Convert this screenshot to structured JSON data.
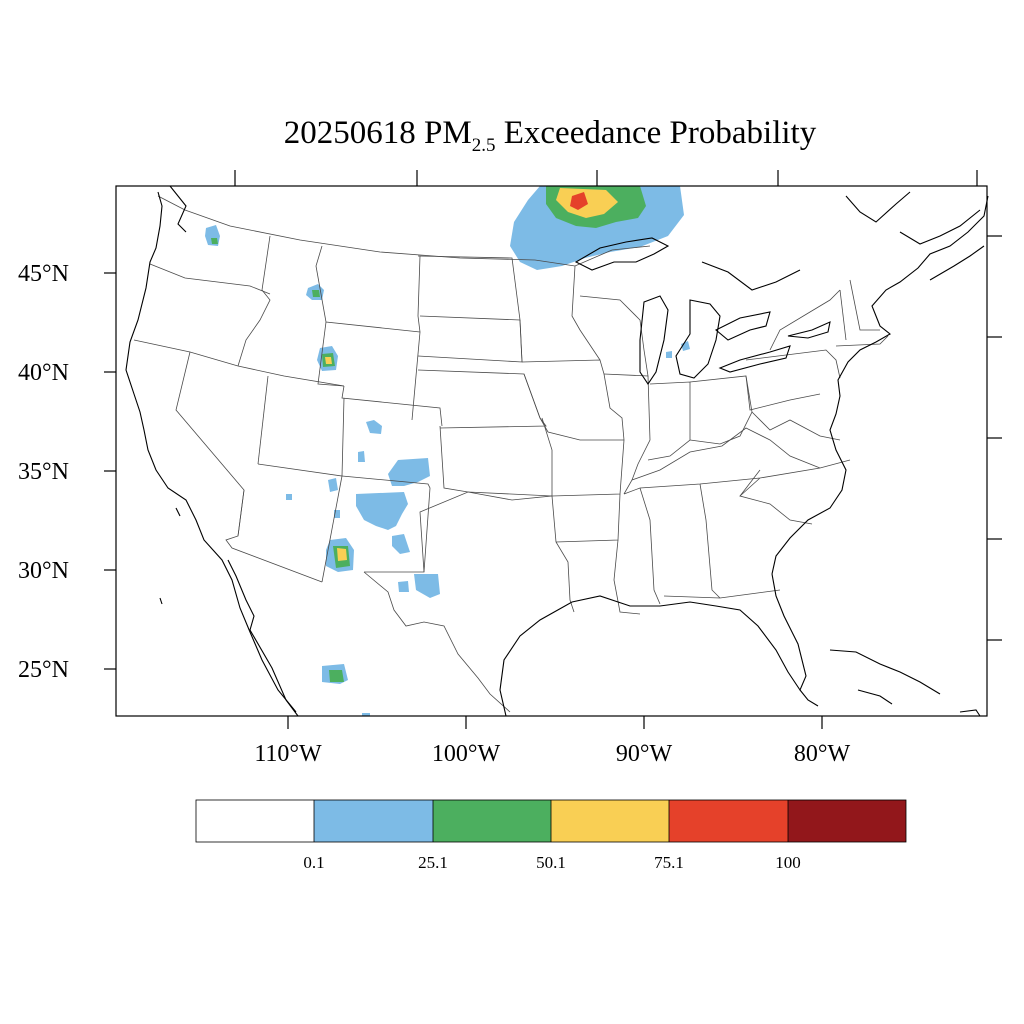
{
  "map": {
    "title_prefix": "20250618 PM",
    "title_subscript": "2.5",
    "title_suffix": " Exceedance Probability",
    "region": "Contiguous United States",
    "lat_labels": [
      "45°N",
      "40°N",
      "35°N",
      "30°N",
      "25°N"
    ],
    "lon_labels": [
      "110°W",
      "100°W",
      "90°W",
      "80°W"
    ]
  },
  "legend": {
    "colors": [
      "#ffffff",
      "#7dbbe6",
      "#4caf5f",
      "#f9cf54",
      "#e5412a",
      "#92171b"
    ],
    "labels": [
      "0.1",
      "25.1",
      "50.1",
      "75.1",
      "100"
    ]
  },
  "probability_areas": [
    {
      "name": "Northern Minnesota / Ontario border",
      "max_class": "75.1-100"
    },
    {
      "name": "Northwest Montana / Idaho",
      "max_class": "25.1-50.1"
    },
    {
      "name": "Southwest Montana",
      "max_class": "25.1-50.1"
    },
    {
      "name": "Northwest Wyoming",
      "max_class": "50.1-75.1"
    },
    {
      "name": "Northern Michigan",
      "max_class": "0.1-25.1"
    },
    {
      "name": "Colorado / New Mexico",
      "max_class": "0.1-25.1"
    },
    {
      "name": "Southern New Mexico / Chihuahua",
      "max_class": "50.1-75.1"
    },
    {
      "name": "West Texas",
      "max_class": "0.1-25.1"
    },
    {
      "name": "Northern Mexico",
      "max_class": "25.1-50.1"
    }
  ]
}
